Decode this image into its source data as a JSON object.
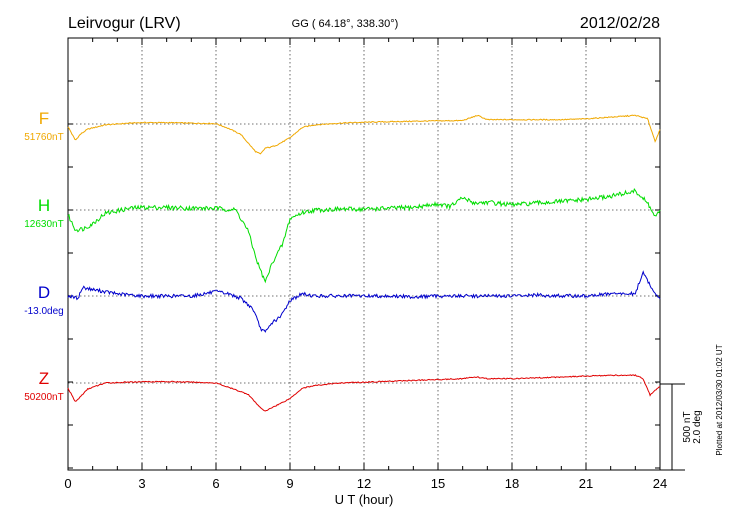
{
  "header": {
    "station": "Leirvogur (LRV)",
    "coords": "GG ( 64.18°, 338.30°)",
    "date": "2012/02/28"
  },
  "side_note": "Plotted at 2012/03/30 01:02 UT",
  "scale": {
    "nt": "500 nT",
    "deg": "2.0 deg"
  },
  "colors": {
    "F": "#f0a800",
    "H": "#00dd00",
    "D": "#0000cc",
    "Z": "#e00000"
  },
  "chart_data": {
    "type": "line",
    "xlabel": "U T (hour)",
    "xlim": [
      0,
      24
    ],
    "x_ticks": [
      0,
      3,
      6,
      9,
      12,
      15,
      18,
      21,
      24
    ],
    "units": {
      "field_scale_nT": 500,
      "angle_scale_deg": 2.0
    },
    "series": [
      {
        "name": "F",
        "baseline_label": "51760nT",
        "unit": "nT",
        "baseline": 51760,
        "x": [
          0,
          0.3,
          0.5,
          0.8,
          1.5,
          2.5,
          3,
          4,
          5,
          6,
          6.5,
          7,
          7.3,
          7.6,
          7.8,
          8,
          8.2,
          8.5,
          9,
          9.5,
          10,
          11,
          12,
          13,
          14,
          15,
          16,
          16.6,
          17,
          18,
          19,
          20,
          21,
          22,
          23,
          23.5,
          23.8,
          24
        ],
        "values": [
          -15,
          -95,
          -60,
          -30,
          -5,
          5,
          8,
          8,
          5,
          2,
          -25,
          -60,
          -110,
          -160,
          -175,
          -140,
          -135,
          -120,
          -80,
          -20,
          -5,
          5,
          10,
          13,
          16,
          18,
          20,
          50,
          25,
          25,
          25,
          25,
          30,
          40,
          50,
          30,
          -100,
          -35
        ]
      },
      {
        "name": "H",
        "baseline_label": "12630nT",
        "unit": "nT",
        "baseline": 12630,
        "x": [
          0,
          0.3,
          0.6,
          1,
          1.5,
          2.5,
          3,
          4,
          5,
          6,
          6.8,
          7.3,
          7.6,
          7.8,
          8,
          8.3,
          8.7,
          9,
          9.5,
          10,
          11,
          12,
          13,
          14,
          15,
          15.5,
          16,
          16.5,
          17,
          18,
          19,
          20,
          21,
          22,
          23,
          23.5,
          23.8,
          24
        ],
        "values": [
          -30,
          -115,
          -110,
          -80,
          -20,
          10,
          15,
          15,
          10,
          10,
          0,
          -120,
          -270,
          -350,
          -420,
          -300,
          -200,
          -50,
          -15,
          0,
          5,
          5,
          10,
          15,
          35,
          20,
          70,
          40,
          45,
          30,
          40,
          50,
          60,
          80,
          110,
          40,
          -40,
          -10
        ]
      },
      {
        "name": "D",
        "baseline_label": "-13.0deg",
        "unit": "deg",
        "baseline": -13.0,
        "x": [
          0,
          0.4,
          0.6,
          1,
          2,
          3,
          4,
          5,
          6,
          6.5,
          7,
          7.5,
          7.8,
          8,
          8.3,
          8.6,
          9,
          9.5,
          10,
          11,
          12,
          13,
          14,
          15,
          16,
          17,
          18,
          19,
          20,
          21,
          22,
          23,
          23.3,
          23.6,
          23.9,
          24
        ],
        "values": [
          0,
          -0.05,
          0.2,
          0.15,
          0.05,
          0.0,
          0.0,
          0.0,
          0.1,
          0.05,
          -0.05,
          -0.3,
          -0.75,
          -0.85,
          -0.6,
          -0.5,
          -0.1,
          0.05,
          0.0,
          0.0,
          0.0,
          0.0,
          -0.02,
          0.0,
          0.0,
          0.0,
          0.0,
          0.02,
          0.0,
          0.0,
          0.05,
          0.05,
          0.55,
          0.25,
          0.0,
          -0.1
        ]
      },
      {
        "name": "Z",
        "baseline_label": "50200nT",
        "unit": "nT",
        "baseline": 50200,
        "x": [
          0,
          0.3,
          0.5,
          0.8,
          1.5,
          2.5,
          3,
          4,
          5,
          6,
          6.8,
          7.3,
          7.7,
          8,
          8.3,
          8.6,
          9,
          9.5,
          10,
          11,
          12,
          13,
          14,
          15,
          16,
          16.5,
          17,
          18,
          19,
          20,
          21,
          22,
          23,
          23.3,
          23.6,
          24
        ],
        "values": [
          -30,
          -110,
          -80,
          -35,
          0,
          5,
          8,
          8,
          5,
          0,
          -40,
          -65,
          -130,
          -165,
          -140,
          -120,
          -90,
          -30,
          -15,
          0,
          5,
          10,
          15,
          20,
          25,
          35,
          25,
          25,
          30,
          35,
          40,
          45,
          45,
          25,
          -70,
          -20
        ]
      }
    ]
  }
}
